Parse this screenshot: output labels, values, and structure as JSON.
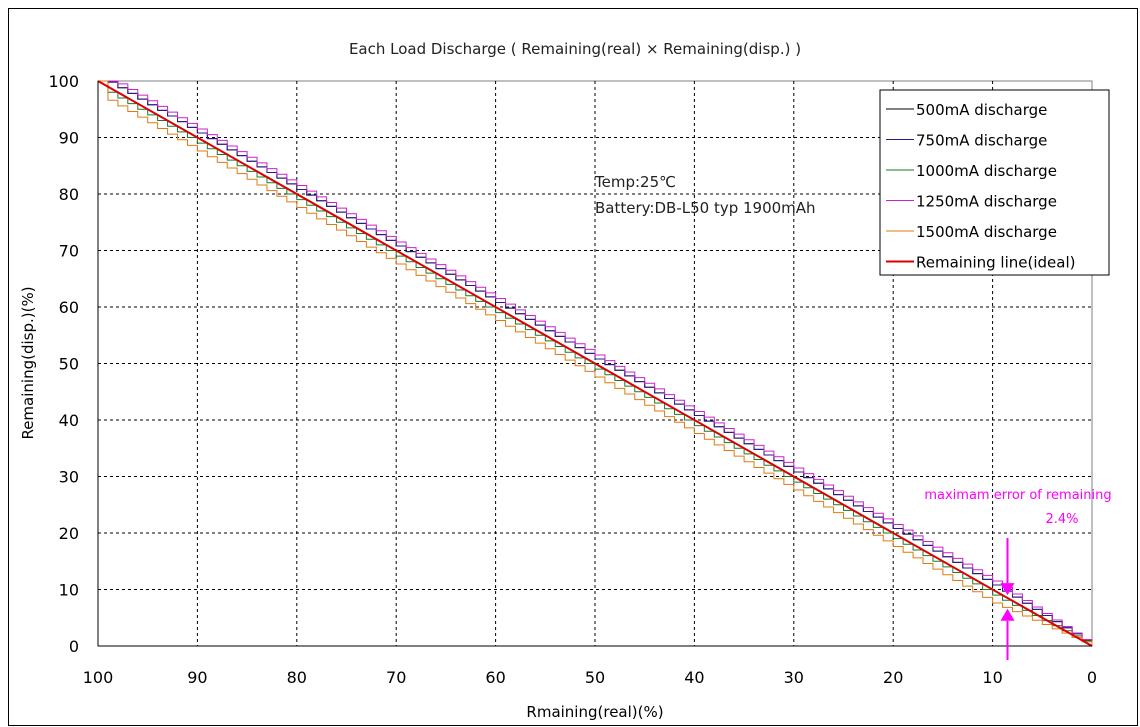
{
  "chart_data": {
    "type": "line",
    "title": "Each Load Discharge ( Remaining(real) × Remaining(disp.) )",
    "xlabel": "Rmaining(real)(%)",
    "ylabel": "Remaining(disp.)(%)",
    "xlim": [
      100,
      0
    ],
    "ylim": [
      0,
      100
    ],
    "x_reversed": true,
    "grid": true,
    "x_ticks": [
      "100",
      "90",
      "80",
      "70",
      "60",
      "50",
      "40",
      "30",
      "20",
      "10",
      "0"
    ],
    "y_ticks": [
      "100",
      "90",
      "80",
      "70",
      "60",
      "50",
      "40",
      "30",
      "20",
      "10",
      "0"
    ],
    "legend_position": "top-right",
    "notes": [
      "Temp:25℃",
      "Battery:DB-L50 typ 1900mAh"
    ],
    "annotation": {
      "line1": "maximam error of remaining",
      "line2": "2.4%",
      "x": 8.5,
      "y_top": 9.0,
      "y_bottom": 6.6,
      "color": "#ff00ff"
    },
    "series": [
      {
        "name": "500mA discharge",
        "color": "#000000",
        "style": "step",
        "offset": 0.8
      },
      {
        "name": "750mA discharge",
        "color": "#2a1a8a",
        "style": "step",
        "offset": 0.8
      },
      {
        "name": "1000mA discharge",
        "color": "#1a7a2a",
        "style": "step",
        "offset": -1.0
      },
      {
        "name": "1250mA discharge",
        "color": "#cc22cc",
        "style": "step",
        "offset": 1.5
      },
      {
        "name": "1500mA discharge",
        "color": "#e07a10",
        "style": "step",
        "offset": -2.4
      },
      {
        "name": "Remaining line(ideal)",
        "color": "#dd0000",
        "style": "line",
        "points": [
          [
            100,
            100
          ],
          [
            0,
            0
          ]
        ]
      }
    ]
  }
}
